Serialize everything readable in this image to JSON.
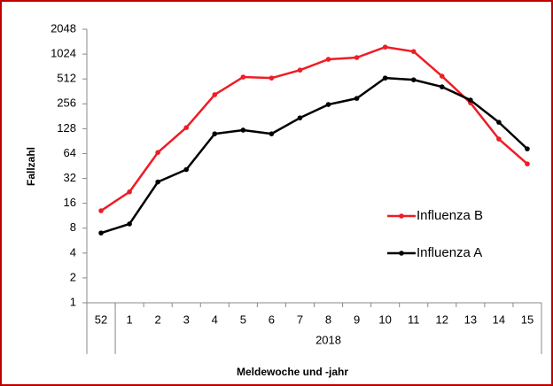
{
  "chart_data": {
    "type": "line",
    "y_label": "Fallzahl",
    "x_label": "Meldewoche und -jahr",
    "categories": [
      "52",
      "1",
      "2",
      "3",
      "4",
      "5",
      "6",
      "7",
      "8",
      "9",
      "10",
      "11",
      "12",
      "13",
      "14",
      "15"
    ],
    "category_groups": [
      {
        "label": null,
        "count": 1
      },
      {
        "label": "2018",
        "count": 15
      }
    ],
    "series": [
      {
        "name": "Influenza B",
        "color": "#ee1c25",
        "values": [
          13,
          22,
          66,
          132,
          330,
          540,
          525,
          655,
          885,
          930,
          1245,
          1100,
          553,
          263,
          96,
          48
        ]
      },
      {
        "name": "Influenza A",
        "color": "#000000",
        "values": [
          7,
          9,
          29,
          41,
          111,
          123,
          111,
          173,
          251,
          298,
          525,
          500,
          411,
          284,
          153,
          73
        ]
      }
    ],
    "ylim": [
      1,
      2048
    ],
    "yticks": [
      1,
      2,
      4,
      8,
      16,
      32,
      64,
      128,
      256,
      512,
      1024,
      2048
    ],
    "yscale": "log",
    "grid": false,
    "legend": "right"
  }
}
